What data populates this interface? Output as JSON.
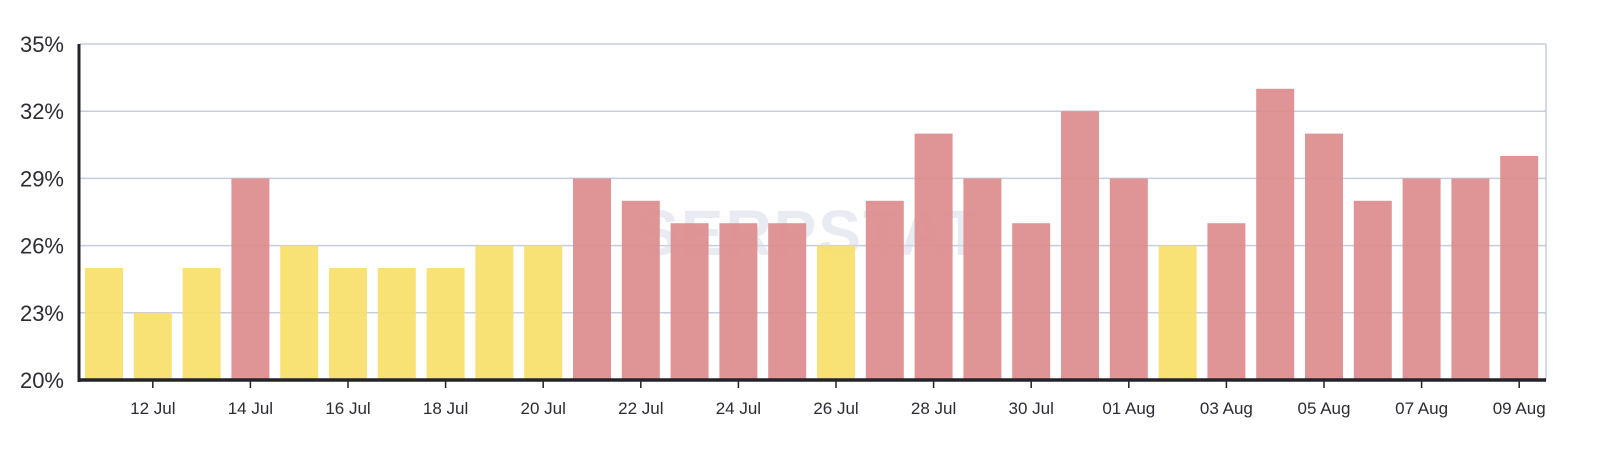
{
  "watermark": "SERPSTAT",
  "colors": {
    "above": "#dc8c8c",
    "below": "#f7e06a",
    "grid": "#c5cde0",
    "axis": "#23232b",
    "text": "#2b2b33"
  },
  "chart_data": {
    "type": "bar",
    "title": "",
    "xlabel": "",
    "ylabel": "",
    "ylim": [
      20,
      35
    ],
    "yticks": [
      "20%",
      "23%",
      "26%",
      "29%",
      "32%",
      "35%"
    ],
    "ytick_values": [
      20,
      23,
      26,
      29,
      32,
      35
    ],
    "grid": true,
    "categories": [
      "11 Jul",
      "12 Jul",
      "13 Jul",
      "14 Jul",
      "15 Jul",
      "16 Jul",
      "17 Jul",
      "18 Jul",
      "19 Jul",
      "20 Jul",
      "21 Jul",
      "22 Jul",
      "23 Jul",
      "24 Jul",
      "25 Jul",
      "26 Jul",
      "27 Jul",
      "28 Jul",
      "29 Jul",
      "30 Jul",
      "31 Jul",
      "01 Aug",
      "02 Aug",
      "03 Aug",
      "04 Aug",
      "05 Aug",
      "06 Aug",
      "07 Aug",
      "08 Aug",
      "09 Aug"
    ],
    "values": [
      25,
      23,
      25,
      29,
      26,
      25,
      25,
      25,
      26,
      26,
      29,
      28,
      27,
      27,
      27,
      26,
      28,
      31,
      29,
      27,
      32,
      29,
      26,
      27,
      33,
      31,
      28,
      29,
      29,
      30
    ],
    "xtick_labels": [
      "12 Jul",
      "14 Jul",
      "16 Jul",
      "18 Jul",
      "20 Jul",
      "22 Jul",
      "24 Jul",
      "26 Jul",
      "28 Jul",
      "30 Jul",
      "01 Aug",
      "03 Aug",
      "05 Aug",
      "07 Aug",
      "09 Aug"
    ],
    "color_threshold": 27
  }
}
